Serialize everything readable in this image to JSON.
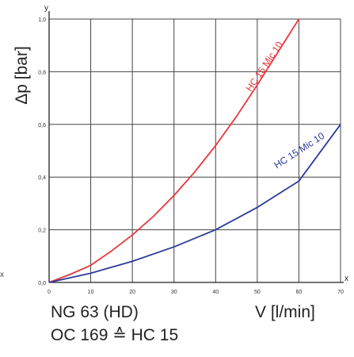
{
  "chart_data": {
    "type": "line",
    "title": "",
    "xlabel": "V [l/min]",
    "ylabel": "Δp [bar]",
    "x_axis_letter": "x",
    "y_axis_letter": "y",
    "xlim": [
      0,
      70
    ],
    "ylim": [
      0,
      1.0
    ],
    "grid": true,
    "x_ticks": [
      "0",
      "10",
      "20",
      "30",
      "40",
      "50",
      "60",
      "70"
    ],
    "y_ticks": [
      "0,0",
      "0,2",
      "0,4",
      "0,6",
      "0,8",
      "1,0"
    ],
    "series": [
      {
        "name": "HC 15 Mic 10",
        "color": "#e8383d",
        "x": [
          0,
          5,
          10,
          15,
          20,
          25,
          30,
          35,
          40,
          45,
          50,
          55,
          60
        ],
        "y": [
          0,
          0.03,
          0.065,
          0.12,
          0.18,
          0.25,
          0.33,
          0.42,
          0.52,
          0.63,
          0.75,
          0.875,
          1.0
        ]
      },
      {
        "name": "HC 15 Mic 10",
        "color": "#2e3a9c",
        "x": [
          0,
          10,
          20,
          30,
          40,
          50,
          60,
          70
        ],
        "y": [
          0,
          0.035,
          0.08,
          0.135,
          0.2,
          0.285,
          0.385,
          0.6
        ]
      }
    ]
  },
  "caption": {
    "line1": "NG 63 (HD)",
    "line2": "OC 169 ≙ HC 15"
  },
  "stray_mark": "x"
}
